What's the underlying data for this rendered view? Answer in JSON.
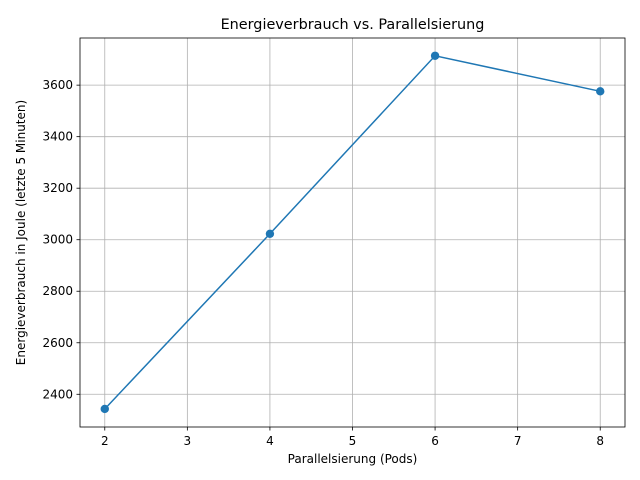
{
  "chart_data": {
    "type": "line",
    "title": "Energieverbrauch vs. Parallelsierung",
    "xlabel": "Parallelsierung (Pods)",
    "ylabel": "Energieverbrauch in Joule (letzte 5 Minuten)",
    "xlim": [
      1.7,
      8.3
    ],
    "ylim": [
      2273,
      3783
    ],
    "xticks": [
      2,
      3,
      4,
      5,
      6,
      7,
      8
    ],
    "yticks": [
      2400,
      2600,
      2800,
      3000,
      3200,
      3400,
      3600
    ],
    "grid": true,
    "series": [
      {
        "x": [
          2,
          4,
          6,
          8
        ],
        "y": [
          2343,
          3023,
          3714,
          3576
        ],
        "color": "#1f77b4",
        "marker": "circle"
      }
    ]
  }
}
